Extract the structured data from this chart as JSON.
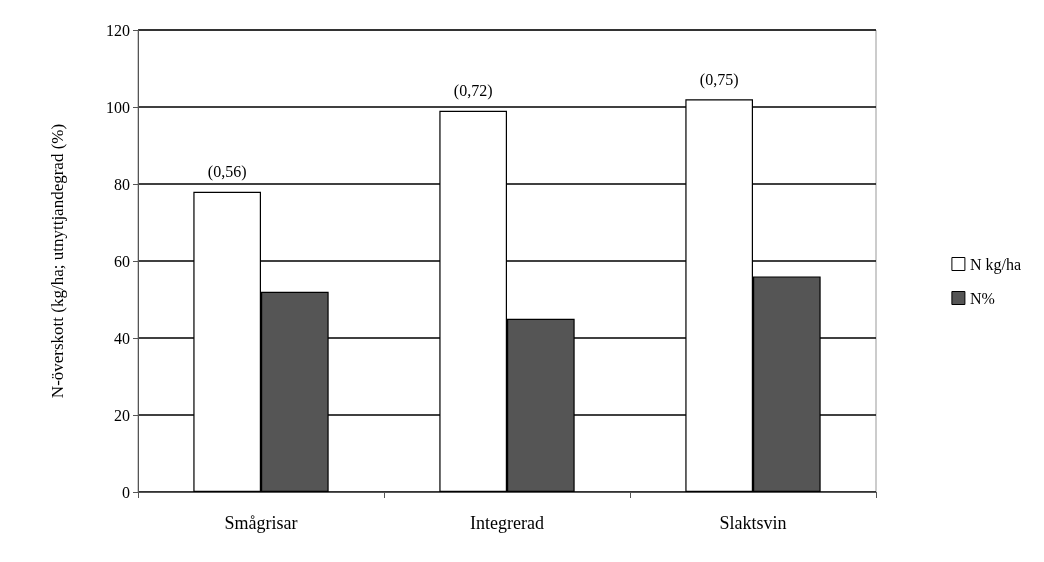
{
  "chart_data": {
    "type": "bar",
    "ylabel": "N-överskott (kg/ha; utnyttjandegrad (%)",
    "categories": [
      "Smågrisar",
      "Integrerad",
      "Slaktsvin"
    ],
    "series": [
      {
        "name": "N kg/ha",
        "color": "#ffffff",
        "values": [
          78,
          99,
          102
        ]
      },
      {
        "name": "N%",
        "color": "#555555",
        "values": [
          52,
          45,
          56
        ]
      }
    ],
    "annotations": [
      {
        "text": "(0,56)",
        "x": "Smågrisar",
        "y": 78
      },
      {
        "text": "(0,72)",
        "x": "Integrerad",
        "y": 99
      },
      {
        "text": "(0,75)",
        "x": "Slaktsvin",
        "y": 102
      }
    ],
    "ylim": [
      0,
      120
    ],
    "yticks": [
      0,
      20,
      40,
      60,
      80,
      100,
      120
    ],
    "grid": "y",
    "legend": "right"
  }
}
